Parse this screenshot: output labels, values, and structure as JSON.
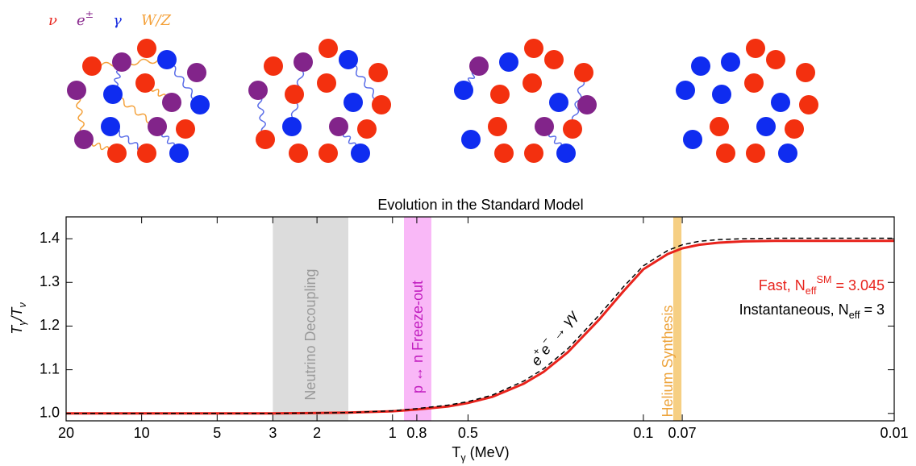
{
  "chart_data": {
    "type": "line",
    "title": "Evolution in the Standard Model",
    "particles": [
      {
        "label": "ν",
        "color": "#e8231c"
      },
      {
        "label": "e^{±}",
        "color": "#8a2a8f"
      },
      {
        "label": "γ",
        "color": "#1b2fe0"
      },
      {
        "label": "W/Z",
        "color": "#f4a13a"
      }
    ],
    "xlabel": "T_{γ} (MeV)",
    "ylabel": "T_{γ}/T_{ν}",
    "xscale": "log",
    "xlim": [
      20,
      0.01
    ],
    "xticks": [
      20,
      10,
      5,
      3,
      2,
      1,
      0.8,
      0.5,
      0.1,
      0.07,
      0.01
    ],
    "ylim": [
      0.983,
      1.45
    ],
    "yticks": [
      {
        "value": 1.0,
        "label": "1.0"
      },
      1.1,
      1.2,
      1.3,
      1.4
    ],
    "x": [
      20,
      10,
      5,
      3,
      2,
      1.5,
      1,
      0.8,
      0.6,
      0.5,
      0.4,
      0.3,
      0.25,
      0.2,
      0.15,
      0.12,
      0.1,
      0.08,
      0.07,
      0.06,
      0.05,
      0.04,
      0.03,
      0.02,
      0.01
    ],
    "series": [
      {
        "name": "Fast, N_{eff}^{SM} = 3.045",
        "color": "#e8231c",
        "linestyle": "solid",
        "values": [
          1.0,
          1.0,
          1.0,
          1.0,
          1.001,
          1.002,
          1.005,
          1.009,
          1.016,
          1.024,
          1.038,
          1.068,
          1.095,
          1.14,
          1.215,
          1.28,
          1.33,
          1.365,
          1.378,
          1.386,
          1.391,
          1.394,
          1.395,
          1.395,
          1.395
        ]
      },
      {
        "name": "Instantaneous, N_{eff} = 3",
        "color": "#000000",
        "linestyle": "dashed",
        "values": [
          1.0,
          1.0,
          1.0,
          1.0,
          1.001,
          1.002,
          1.006,
          1.011,
          1.019,
          1.027,
          1.042,
          1.074,
          1.102,
          1.148,
          1.225,
          1.29,
          1.338,
          1.373,
          1.386,
          1.394,
          1.398,
          1.4,
          1.401,
          1.401,
          1.401
        ]
      }
    ],
    "legend": "right",
    "bands": [
      {
        "label": "Neutrino Decoupling",
        "range": [
          3,
          1.5
        ],
        "color": "#dcdcdc",
        "text_color": "#9a9a9a"
      },
      {
        "label": "p ↔ n Freeze-out",
        "range": [
          0.9,
          0.7
        ],
        "color": "#f9b8f7",
        "text_color": "#c21fc0"
      },
      {
        "label": "Helium Synthesis",
        "range": [
          0.076,
          0.0705
        ],
        "color": "#f6cf83",
        "text_color": "#eda33a"
      }
    ],
    "annotation": "e^{+}e^{−} → γγ"
  }
}
